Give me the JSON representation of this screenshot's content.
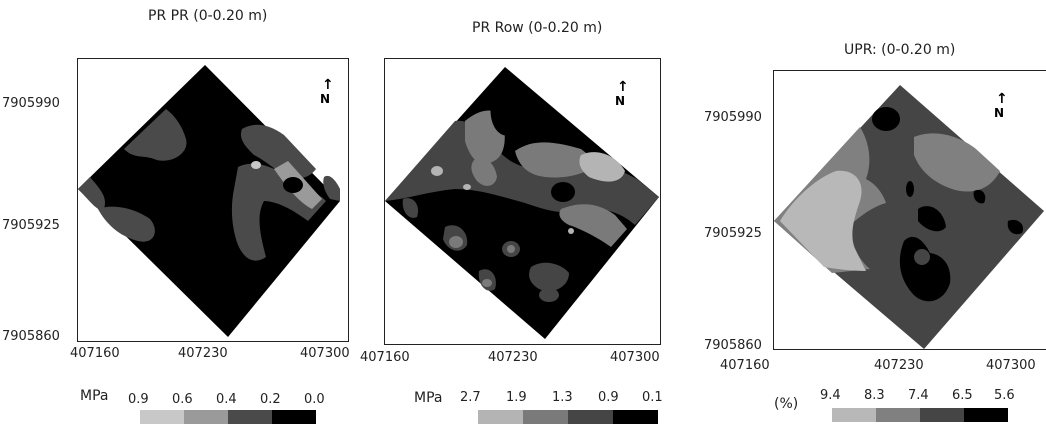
{
  "maps": [
    {
      "title": "PR PR (0-0.20 m)",
      "y_ticks": [
        "7905990",
        "7905925",
        "7905860"
      ],
      "x_ticks": [
        "407160",
        "407230",
        "407300"
      ],
      "north_label": "N",
      "legend": {
        "unit": "MPa",
        "values": [
          "0.9",
          "0.6",
          "0.4",
          "0.2",
          "0.0"
        ],
        "colors": [
          "#c8c8c8",
          "#9a9a9a",
          "#4a4a4a",
          "#000000"
        ]
      }
    },
    {
      "title": "PR Row (0-0.20 m)",
      "x_ticks": [
        "407160",
        "407230",
        "407300"
      ],
      "north_label": "N",
      "legend": {
        "unit": "MPa",
        "values": [
          "2.7",
          "1.9",
          "1.3",
          "0.9",
          "0.1"
        ],
        "colors": [
          "#b4b4b4",
          "#7a7a7a",
          "#454545",
          "#000000"
        ]
      }
    },
    {
      "title": "UPR: (0-0.20 m)",
      "y_ticks": [
        "7905990",
        "7905925",
        "7905860"
      ],
      "x_ticks": [
        "407160",
        "407230",
        "407300"
      ],
      "north_label": "N",
      "legend": {
        "unit": "(%)",
        "values": [
          "9.4",
          "8.3",
          "7.4",
          "6.5",
          "5.6"
        ],
        "colors": [
          "#b8b8b8",
          "#808080",
          "#454545",
          "#000000"
        ]
      }
    }
  ]
}
